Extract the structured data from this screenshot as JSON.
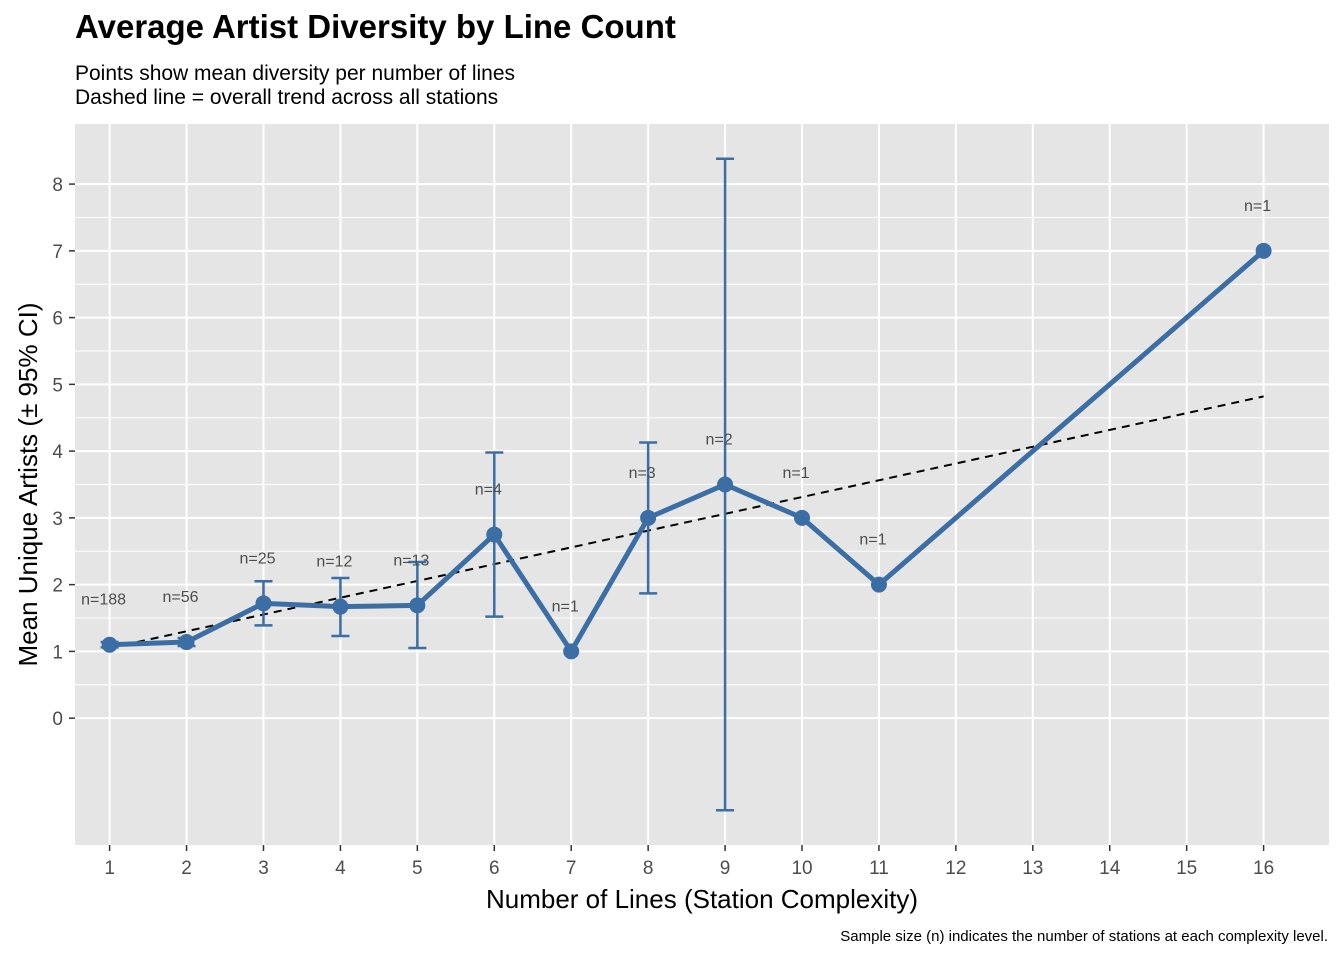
{
  "chart_data": {
    "type": "line",
    "title": "Average Artist Diversity by Line Count",
    "subtitle": [
      "Points show mean diversity per number of lines",
      "Dashed line = overall trend across all stations"
    ],
    "xlabel": "Number of Lines (Station Complexity)",
    "ylabel": "Mean Unique Artists (± 95% CI)",
    "caption": "Sample size (n) indicates the number of stations at each complexity level.",
    "x_ticks": [
      1,
      2,
      3,
      4,
      5,
      6,
      7,
      8,
      9,
      10,
      11,
      12,
      13,
      14,
      15,
      16
    ],
    "y_ticks": [
      0,
      1,
      2,
      3,
      4,
      5,
      6,
      7,
      8
    ],
    "xlim": [
      0.55,
      16.85
    ],
    "ylim": [
      -1.9,
      8.9
    ],
    "grid": true,
    "series": [
      {
        "color": "#3a6ea5",
        "points": [
          {
            "x": 1,
            "y": 1.1,
            "lo": 1.06,
            "hi": 1.14,
            "n": "n=188"
          },
          {
            "x": 2,
            "y": 1.14,
            "lo": 1.08,
            "hi": 1.2,
            "n": "n=56"
          },
          {
            "x": 3,
            "y": 1.72,
            "lo": 1.39,
            "hi": 2.05,
            "n": "n=25"
          },
          {
            "x": 4,
            "y": 1.67,
            "lo": 1.23,
            "hi": 2.1,
            "n": "n=12"
          },
          {
            "x": 5,
            "y": 1.69,
            "lo": 1.05,
            "hi": 2.34,
            "n": "n=13"
          },
          {
            "x": 6,
            "y": 2.75,
            "lo": 1.52,
            "hi": 3.98,
            "n": "n=4"
          },
          {
            "x": 7,
            "y": 1.0,
            "lo": null,
            "hi": null,
            "n": "n=1"
          },
          {
            "x": 8,
            "y": 3.0,
            "lo": 1.87,
            "hi": 4.13,
            "n": "n=3"
          },
          {
            "x": 9,
            "y": 3.5,
            "lo": -1.38,
            "hi": 8.38,
            "n": "n=2"
          },
          {
            "x": 10,
            "y": 3.0,
            "lo": null,
            "hi": null,
            "n": "n=1"
          },
          {
            "x": 11,
            "y": 2.0,
            "lo": null,
            "hi": null,
            "n": "n=1"
          },
          {
            "x": 16,
            "y": 7.0,
            "lo": null,
            "hi": null,
            "n": "n=1"
          }
        ]
      }
    ],
    "trend": {
      "x_start": 1,
      "y_start": 1.05,
      "x_end": 16,
      "y_end": 4.82,
      "style": "dashed",
      "color": "#000000"
    },
    "panel_background": "#e5e5e5",
    "gridline_color": "#ffffff"
  }
}
